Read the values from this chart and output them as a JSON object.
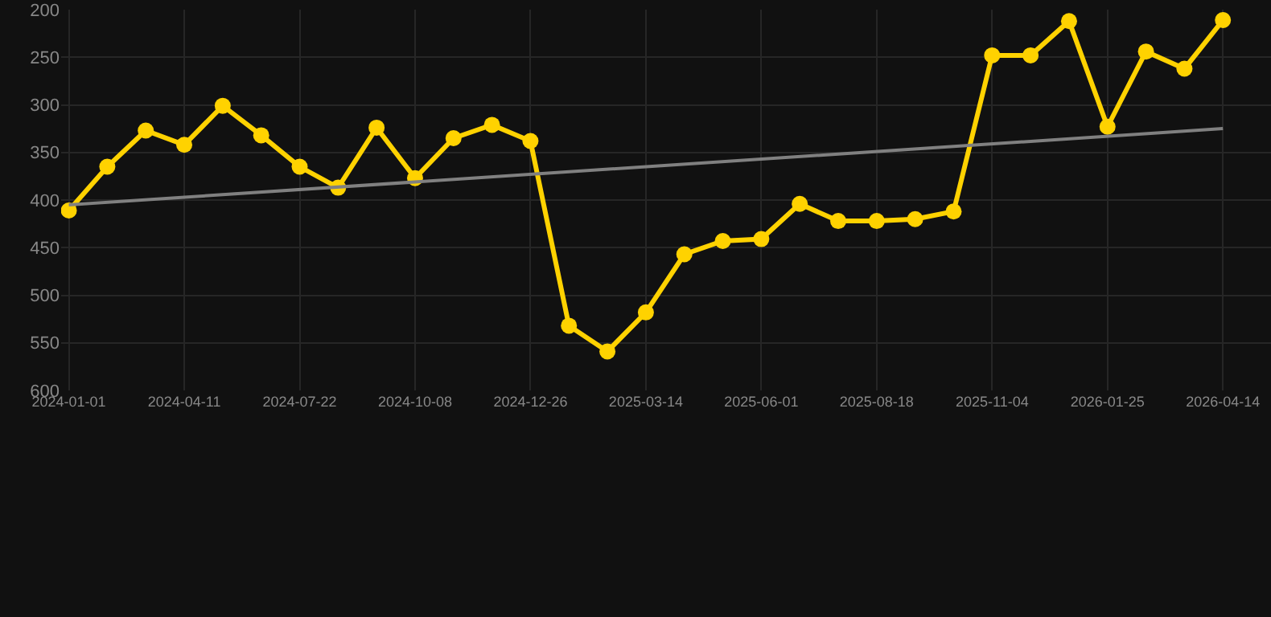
{
  "chart_data": {
    "type": "line",
    "categories": [
      "2024-01-01",
      null,
      null,
      "2024-04-11",
      null,
      null,
      "2024-07-22",
      null,
      null,
      "2024-10-08",
      null,
      null,
      "2024-12-26",
      null,
      null,
      "2025-03-14",
      null,
      null,
      "2025-06-01",
      null,
      null,
      "2025-08-18",
      null,
      null,
      "2025-11-04",
      null,
      null,
      "2026-01-25",
      null,
      null,
      "2026-04-14"
    ],
    "series": [
      {
        "color": "#ffd200",
        "values": [
          411,
          365,
          327,
          342,
          301,
          332,
          365,
          387,
          324,
          377,
          335,
          321,
          338,
          532,
          559,
          518,
          457,
          443,
          441,
          404,
          422,
          422,
          420,
          412,
          248,
          248,
          212,
          323,
          244,
          262,
          211
        ]
      },
      {
        "type": "line",
        "marker": "none",
        "color": "#808080",
        "values": [
          405,
          null,
          null,
          null,
          null,
          null,
          null,
          null,
          null,
          null,
          null,
          null,
          null,
          null,
          null,
          null,
          null,
          null,
          null,
          null,
          null,
          null,
          null,
          null,
          null,
          null,
          null,
          null,
          null,
          null,
          325
        ]
      }
    ],
    "ylim": [
      600,
      200
    ],
    "yticks": [
      200,
      250,
      300,
      350,
      400,
      450,
      500,
      550,
      600
    ],
    "grid": true,
    "marker": "circle",
    "line_style": "solid"
  }
}
